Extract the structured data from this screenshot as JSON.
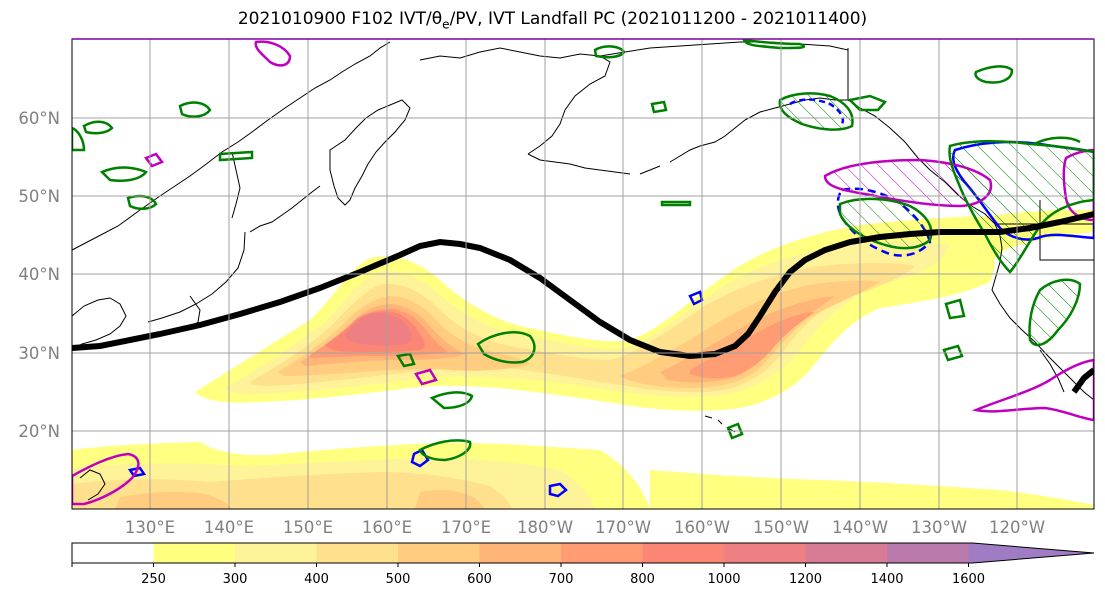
{
  "title_main": "2021010900 F102 IVT/",
  "title_sym": "θ",
  "title_sub": "e",
  "title_rest": "/PV, IVT Landfall PC (2021011200 - 2021011400)",
  "lat_labels": [
    "60°N",
    "50°N",
    "40°N",
    "30°N",
    "20°N"
  ],
  "lon_labels": [
    "130°E",
    "140°E",
    "150°E",
    "160°E",
    "170°E",
    "180°W",
    "170°W",
    "160°W",
    "150°W",
    "140°W",
    "130°W",
    "120°W"
  ],
  "colorbar": {
    "levels": [
      "250",
      "300",
      "400",
      "500",
      "600",
      "700",
      "800",
      "1000",
      "1200",
      "1400",
      "1600"
    ],
    "colors": [
      "#ffffff",
      "#ffff80",
      "#fff39a",
      "#ffe08c",
      "#ffcc80",
      "#ffb478",
      "#ff9c74",
      "#fc8676",
      "#ee7f82",
      "#d87c96",
      "#bb7aac",
      "#a07cc4"
    ]
  },
  "colors": {
    "pv": "#008000",
    "theta_pos": "#bf00bf",
    "theta_neg": "#0000ff",
    "ivt_pc": "#000000",
    "coast": "#000000"
  }
}
